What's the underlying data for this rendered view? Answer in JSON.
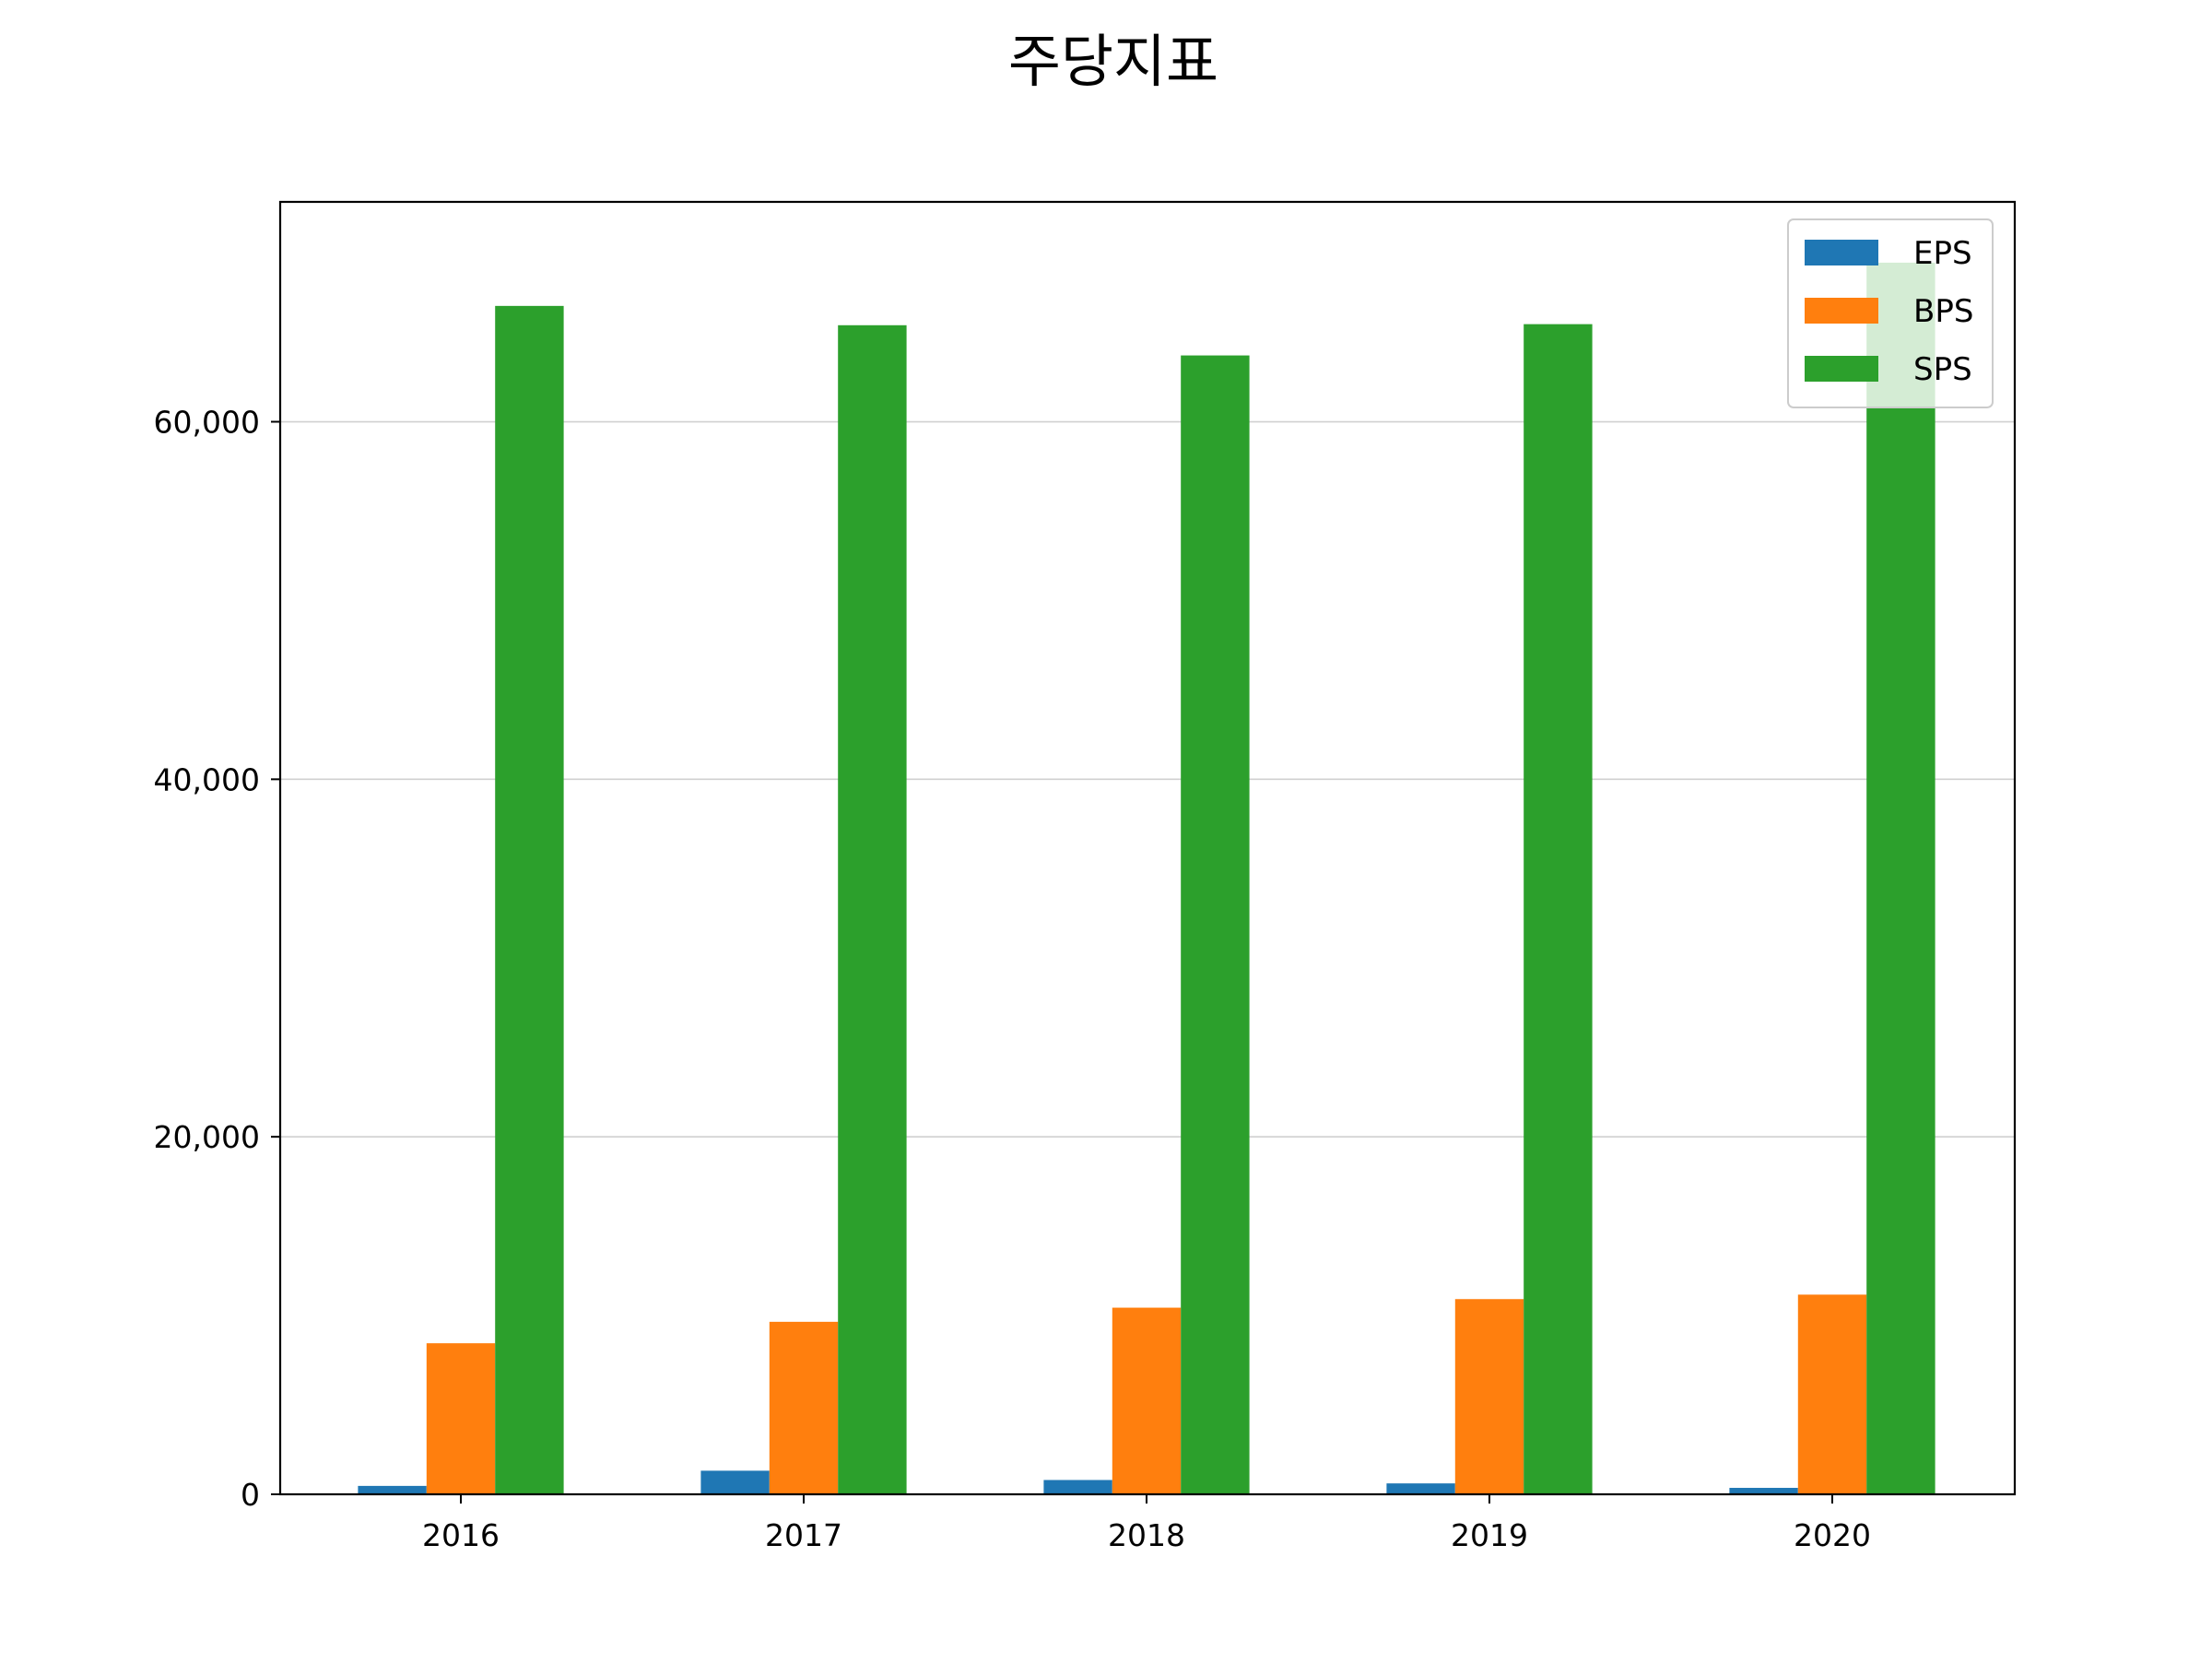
{
  "chart_data": {
    "type": "bar",
    "title": "주당지표",
    "xlabel": "",
    "ylabel": "",
    "categories": [
      "2016",
      "2017",
      "2018",
      "2019",
      "2020"
    ],
    "series": [
      {
        "name": "EPS",
        "color": "#1f77b4",
        "values": [
          470,
          1320,
          800,
          610,
          360
        ]
      },
      {
        "name": "BPS",
        "color": "#ff7f0e",
        "values": [
          8450,
          9650,
          10440,
          10920,
          11170
        ]
      },
      {
        "name": "SPS",
        "color": "#2ca02c",
        "values": [
          66480,
          65400,
          63710,
          65460,
          68900
        ]
      }
    ],
    "ylim": [
      0,
      72300
    ],
    "yticks": [
      {
        "value": 0,
        "label": "0"
      },
      {
        "value": 20000,
        "label": "20,000"
      },
      {
        "value": 40000,
        "label": "40,000"
      },
      {
        "value": 60000,
        "label": "60,000"
      }
    ],
    "grid": "y",
    "legend_position": "upper-right"
  }
}
